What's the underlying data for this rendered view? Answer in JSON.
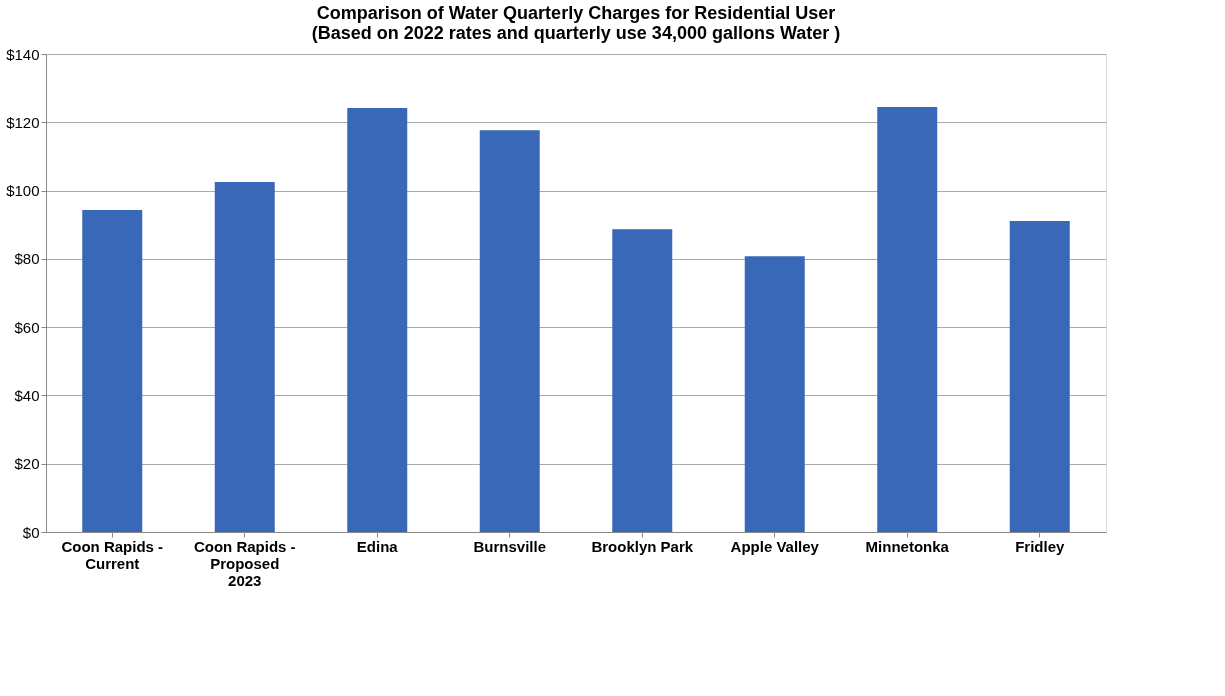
{
  "chart_data": {
    "type": "bar",
    "title": [
      "Comparison of Water Quarterly Charges for Residential User",
      "(Based on 2022 rates and quarterly use 34,000 gallons Water )"
    ],
    "categories": [
      "Coon Rapids -\nCurrent",
      "Coon Rapids -\nProposed\n2023",
      "Edina",
      "Burnsville",
      "Brooklyn Park",
      "Apple Valley",
      "Minnetonka",
      "Fridley"
    ],
    "values": [
      94.3,
      102.5,
      124.2,
      117.7,
      88.7,
      80.8,
      124.5,
      91.1
    ],
    "color": "#3a68b8",
    "ylim": [
      0,
      140
    ],
    "yticks": [
      {
        "value": 0,
        "label": "$0"
      },
      {
        "value": 20,
        "label": "$20"
      },
      {
        "value": 40,
        "label": "$40"
      },
      {
        "value": 60,
        "label": "$60"
      },
      {
        "value": 80,
        "label": "$80"
      },
      {
        "value": 100,
        "label": "$100"
      },
      {
        "value": 120,
        "label": "$120"
      },
      {
        "value": 140,
        "label": "$140"
      }
    ],
    "grid": "y"
  }
}
